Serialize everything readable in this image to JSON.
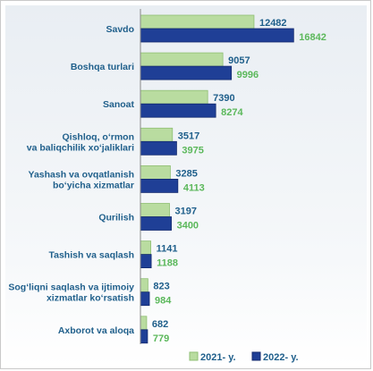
{
  "chart_data": {
    "type": "bar",
    "orientation": "horizontal",
    "categories": [
      [
        "Savdo"
      ],
      [
        "Boshqa turlari"
      ],
      [
        "Sanoat"
      ],
      [
        "Qishloq, o‘rmon",
        "va baliqchilik xo‘jaliklari"
      ],
      [
        "Yashash va ovqatlanish",
        "bo‘yicha xizmatlar"
      ],
      [
        "Qurilish"
      ],
      [
        "Tashish va saqlash"
      ],
      [
        "Sog‘liqni saqlash va ijtimoiy",
        "xizmatlar ko‘rsatish"
      ],
      [
        "Axborot va aloqa"
      ]
    ],
    "series": [
      {
        "name": "2021- y.",
        "color": "#b9dca0",
        "values": [
          12482,
          9057,
          7390,
          3517,
          3285,
          3197,
          1141,
          823,
          682
        ]
      },
      {
        "name": "2022- y.",
        "color": "#1f3f96",
        "values": [
          16842,
          9996,
          8274,
          3975,
          4113,
          3400,
          1188,
          984,
          779
        ]
      }
    ],
    "legend_position": "bottom-center",
    "grid": false
  },
  "colors": {
    "label": "#1f5f8b",
    "value_2021": "#1f5f8b",
    "value_2022": "#5bb85b",
    "axis": "#888888"
  }
}
